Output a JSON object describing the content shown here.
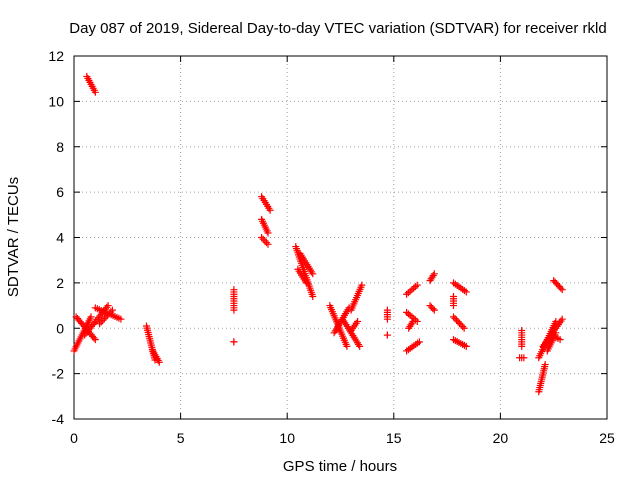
{
  "chart_data": {
    "type": "scatter",
    "title": "Day 087 of 2019, Sidereal Day-to-day VTEC variation (SDTVAR) for receiver rkld",
    "xlabel": "GPS time / hours",
    "ylabel": "SDTVAR / TECUs",
    "xlim": [
      0,
      25
    ],
    "ylim": [
      -4,
      12
    ],
    "xticks": [
      0,
      5,
      10,
      15,
      20,
      25
    ],
    "yticks": [
      -4,
      -2,
      0,
      2,
      4,
      6,
      8,
      10,
      12
    ],
    "xtick_labels": [
      "0",
      "5",
      "10",
      "15",
      "20",
      "25"
    ],
    "ytick_labels": [
      "-4",
      "-2",
      "0",
      "2",
      "4",
      "6",
      "8",
      "10",
      "12"
    ],
    "grid": true,
    "marker": "plus",
    "color": "#ff0000",
    "segments": [
      {
        "x": [
          0.6,
          1.0
        ],
        "y": [
          11.1,
          10.4
        ]
      },
      {
        "x": [
          0.0,
          0.8
        ],
        "y": [
          -1.0,
          0.5
        ]
      },
      {
        "x": [
          0.1,
          1.0
        ],
        "y": [
          0.5,
          -0.5
        ]
      },
      {
        "x": [
          0.5,
          1.6
        ],
        "y": [
          -0.3,
          1.0
        ]
      },
      {
        "x": [
          1.0,
          2.2
        ],
        "y": [
          0.9,
          0.4
        ]
      },
      {
        "x": [
          1.2,
          1.8
        ],
        "y": [
          0.2,
          0.8
        ]
      },
      {
        "x": [
          3.4,
          3.8
        ],
        "y": [
          0.1,
          -1.4
        ]
      },
      {
        "x": [
          3.7,
          4.0
        ],
        "y": [
          -1.0,
          -1.5
        ]
      },
      {
        "x": [
          7.5,
          7.5
        ],
        "y": [
          1.7,
          0.8
        ]
      },
      {
        "x": [
          7.5,
          7.5
        ],
        "y": [
          -0.6,
          -0.6
        ]
      },
      {
        "x": [
          8.8,
          9.2
        ],
        "y": [
          5.8,
          5.2
        ]
      },
      {
        "x": [
          8.8,
          9.1
        ],
        "y": [
          4.8,
          4.2
        ]
      },
      {
        "x": [
          8.8,
          9.1
        ],
        "y": [
          4.0,
          3.7
        ]
      },
      {
        "x": [
          10.4,
          11.2
        ],
        "y": [
          3.6,
          1.4
        ]
      },
      {
        "x": [
          10.6,
          11.2
        ],
        "y": [
          3.3,
          2.4
        ]
      },
      {
        "x": [
          10.5,
          10.9
        ],
        "y": [
          2.6,
          2.0
        ]
      },
      {
        "x": [
          12.0,
          12.8
        ],
        "y": [
          1.0,
          -0.8
        ]
      },
      {
        "x": [
          12.2,
          12.9
        ],
        "y": [
          -0.2,
          0.9
        ]
      },
      {
        "x": [
          12.6,
          13.4
        ],
        "y": [
          0.4,
          -0.8
        ]
      },
      {
        "x": [
          13.0,
          13.5
        ],
        "y": [
          0.8,
          1.9
        ]
      },
      {
        "x": [
          13.0,
          13.3
        ],
        "y": [
          -0.1,
          0.3
        ]
      },
      {
        "x": [
          14.7,
          14.7
        ],
        "y": [
          0.8,
          0.4
        ]
      },
      {
        "x": [
          14.7,
          14.7
        ],
        "y": [
          -0.3,
          -0.3
        ]
      },
      {
        "x": [
          15.6,
          16.1
        ],
        "y": [
          1.5,
          1.9
        ]
      },
      {
        "x": [
          15.6,
          16.2
        ],
        "y": [
          -1.0,
          -0.6
        ]
      },
      {
        "x": [
          15.6,
          16.1
        ],
        "y": [
          0.7,
          0.3
        ]
      },
      {
        "x": [
          15.7,
          15.9
        ],
        "y": [
          0.0,
          0.3
        ]
      },
      {
        "x": [
          16.7,
          16.9
        ],
        "y": [
          2.1,
          2.4
        ]
      },
      {
        "x": [
          16.7,
          16.9
        ],
        "y": [
          1.0,
          0.8
        ]
      },
      {
        "x": [
          17.8,
          18.4
        ],
        "y": [
          2.0,
          1.6
        ]
      },
      {
        "x": [
          17.8,
          18.4
        ],
        "y": [
          -0.5,
          -0.8
        ]
      },
      {
        "x": [
          17.8,
          18.3
        ],
        "y": [
          0.5,
          0.0
        ]
      },
      {
        "x": [
          17.8,
          17.8
        ],
        "y": [
          1.4,
          1.0
        ]
      },
      {
        "x": [
          21.0,
          21.0
        ],
        "y": [
          -0.1,
          -0.8
        ]
      },
      {
        "x": [
          20.9,
          21.1
        ],
        "y": [
          -1.3,
          -1.3
        ]
      },
      {
        "x": [
          21.8,
          22.1
        ],
        "y": [
          -2.8,
          -1.6
        ]
      },
      {
        "x": [
          21.8,
          22.6
        ],
        "y": [
          -1.3,
          0.3
        ]
      },
      {
        "x": [
          22.0,
          22.9
        ],
        "y": [
          -0.8,
          0.4
        ]
      },
      {
        "x": [
          22.2,
          22.6
        ],
        "y": [
          -1.0,
          -0.2
        ]
      },
      {
        "x": [
          22.5,
          22.9
        ],
        "y": [
          2.1,
          1.7
        ]
      },
      {
        "x": [
          22.4,
          22.8
        ],
        "y": [
          -0.3,
          -0.5
        ]
      }
    ]
  }
}
